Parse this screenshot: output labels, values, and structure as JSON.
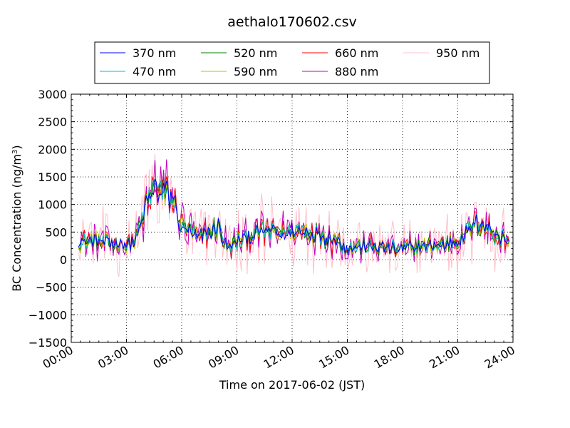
{
  "chart_data": {
    "type": "line",
    "title": "aethalo170602.csv",
    "xlabel": "Time on 2017-06-02 (JST)",
    "ylabel": "BC Concentration (ng/m³)",
    "ylabel_main": "BC Concentration (ng/m",
    "ylabel_sup": "3",
    "ylabel_tail": ")",
    "xlim": [
      0,
      24
    ],
    "ylim": [
      -1500,
      3000
    ],
    "yticks": [
      -1500,
      -1000,
      -500,
      0,
      500,
      1000,
      1500,
      2000,
      2500,
      3000
    ],
    "ytick_labels": [
      "−1500",
      "−1000",
      "−500",
      "0",
      "500",
      "1000",
      "1500",
      "2000",
      "2500",
      "3000"
    ],
    "xticks": [
      0,
      3,
      6,
      9,
      12,
      15,
      18,
      21,
      24
    ],
    "xtick_labels": [
      "00:00",
      "03:00",
      "06:00",
      "09:00",
      "12:00",
      "15:00",
      "18:00",
      "21:00",
      "24:00"
    ],
    "grid": true,
    "legend_position": "above plot",
    "x_units": "hours",
    "profile_x": [
      0,
      0.5,
      1,
      1.5,
      2,
      2.5,
      3,
      3.5,
      4,
      4.5,
      5,
      5.5,
      6,
      6.5,
      7,
      7.5,
      8,
      8.5,
      9,
      9.5,
      10,
      10.5,
      11,
      11.5,
      12,
      12.5,
      13,
      13.5,
      14,
      14.5,
      15,
      15.5,
      16,
      16.5,
      17,
      17.5,
      18,
      18.5,
      19,
      19.5,
      20,
      20.5,
      21,
      21.5,
      22,
      22.5,
      23,
      23.5,
      24
    ],
    "profile_y": [
      300,
      320,
      350,
      340,
      300,
      280,
      260,
      350,
      900,
      1300,
      1200,
      1100,
      600,
      500,
      400,
      500,
      600,
      200,
      300,
      400,
      450,
      500,
      500,
      480,
      500,
      520,
      500,
      450,
      400,
      350,
      200,
      250,
      250,
      220,
      230,
      200,
      180,
      220,
      250,
      250,
      260,
      300,
      350,
      500,
      700,
      600,
      450,
      400,
      350
    ],
    "series": [
      {
        "name": "370 nm",
        "color": "#0000ff",
        "noise": 0.35
      },
      {
        "name": "470 nm",
        "color": "#00bfbf",
        "noise": 0.4
      },
      {
        "name": "520 nm",
        "color": "#008000",
        "noise": 0.45
      },
      {
        "name": "590 nm",
        "color": "#bfbf00",
        "noise": 0.5
      },
      {
        "name": "660 nm",
        "color": "#ff0000",
        "noise": 0.6
      },
      {
        "name": "880 nm",
        "color": "#bf00bf",
        "noise": 0.9
      },
      {
        "name": "950 nm",
        "color": "#ffc0cb",
        "noise": 1.5
      }
    ]
  }
}
